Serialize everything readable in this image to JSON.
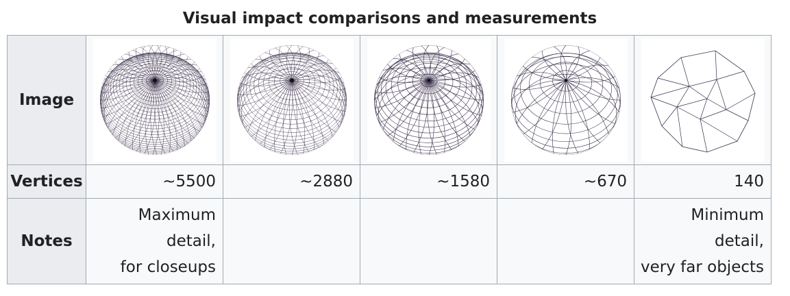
{
  "caption": "Visual impact comparisons and measurements",
  "rows": {
    "image": "Image",
    "vertices": "Vertices",
    "notes": "Notes"
  },
  "columns": [
    {
      "vertices": "~5500",
      "note_lines": [
        "Maximum",
        "detail,",
        "for closeups"
      ]
    },
    {
      "vertices": "~2880",
      "note_lines": []
    },
    {
      "vertices": "~1580",
      "note_lines": []
    },
    {
      "vertices": "~670",
      "note_lines": []
    },
    {
      "vertices": "140",
      "note_lines": [
        "Minimum",
        "detail,",
        "very far objects"
      ]
    }
  ],
  "mesh_density": [
    5500,
    2880,
    1580,
    670,
    140
  ],
  "colors": {
    "header_bg": "#eaecf0",
    "border": "#a2a9b1",
    "cell_bg": "#f8f9fa",
    "wire": "#3a2f4a"
  }
}
